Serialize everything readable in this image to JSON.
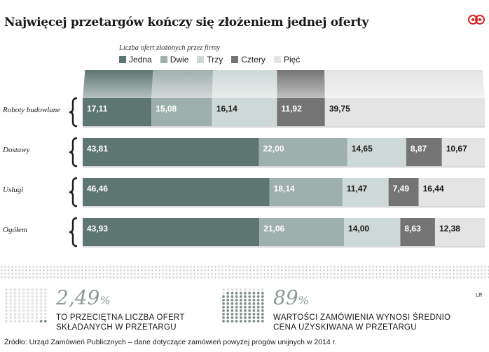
{
  "title": "Najwięcej przetargów kończy się złożeniem jednej oferty",
  "chart_data": {
    "type": "bar",
    "orientation": "horizontal",
    "stacked": true,
    "subtitle": "Liczba ofert złożonych przez firmy",
    "categories": [
      "Roboty budowlane",
      "Dostawy",
      "Usługi",
      "Ogółem"
    ],
    "series": [
      {
        "name": "Jedna",
        "values": [
          17.11,
          43.81,
          46.46,
          43.93
        ],
        "labels": [
          "17,11",
          "43,81",
          "46,46",
          "43,93"
        ],
        "color": "#5d7671"
      },
      {
        "name": "Dwie",
        "values": [
          15.08,
          22.0,
          18.14,
          21.06
        ],
        "labels": [
          "15,08",
          "22,00",
          "18,14",
          "21,06"
        ],
        "color": "#9eb0ac"
      },
      {
        "name": "Trzy",
        "values": [
          16.14,
          14.65,
          11.47,
          14.0
        ],
        "labels": [
          "16,14",
          "14,65",
          "11,47",
          "14,00"
        ],
        "color": "#ccd9d6"
      },
      {
        "name": "Cztery",
        "values": [
          11.92,
          8.87,
          7.49,
          8.63
        ],
        "labels": [
          "11,92",
          "8,87",
          "7,49",
          "8,63"
        ],
        "color": "#747474"
      },
      {
        "name": "Pięć",
        "values": [
          39.75,
          10.67,
          16.44,
          12.38
        ],
        "labels": [
          "39,75",
          "10,67",
          "16,44",
          "12,38"
        ],
        "color": "#e4e4e4"
      }
    ],
    "legend_placement": "top-left",
    "grid": false
  },
  "stats": [
    {
      "value": "2,49",
      "unit": "%",
      "line1": "TO PRZECIĘTNA LICZBA OFERT",
      "line2": "SKŁADANYCH W PRZETARGU",
      "fill_fraction": 0.0249
    },
    {
      "value": "89",
      "unit": "%",
      "line1": "WARTOŚCI ZAMÓWIENIA WYNOSI ŚREDNIO",
      "line2": "CENA UZYSKIWANA W PRZETARGU",
      "fill_fraction": 0.89
    }
  ],
  "source": "Źródło: Urząd Zamówień Publicznych – dane dotyczące zamówień powyżej progów unijnych w 2014 r.",
  "author": "LR",
  "colors": {
    "label_light": "#ffffff",
    "label_dark": "#1a1a1a",
    "stat_accent": "#8a9a96",
    "dot_empty": "#e3e3e3",
    "dot_filled": "#7e8f8b"
  }
}
